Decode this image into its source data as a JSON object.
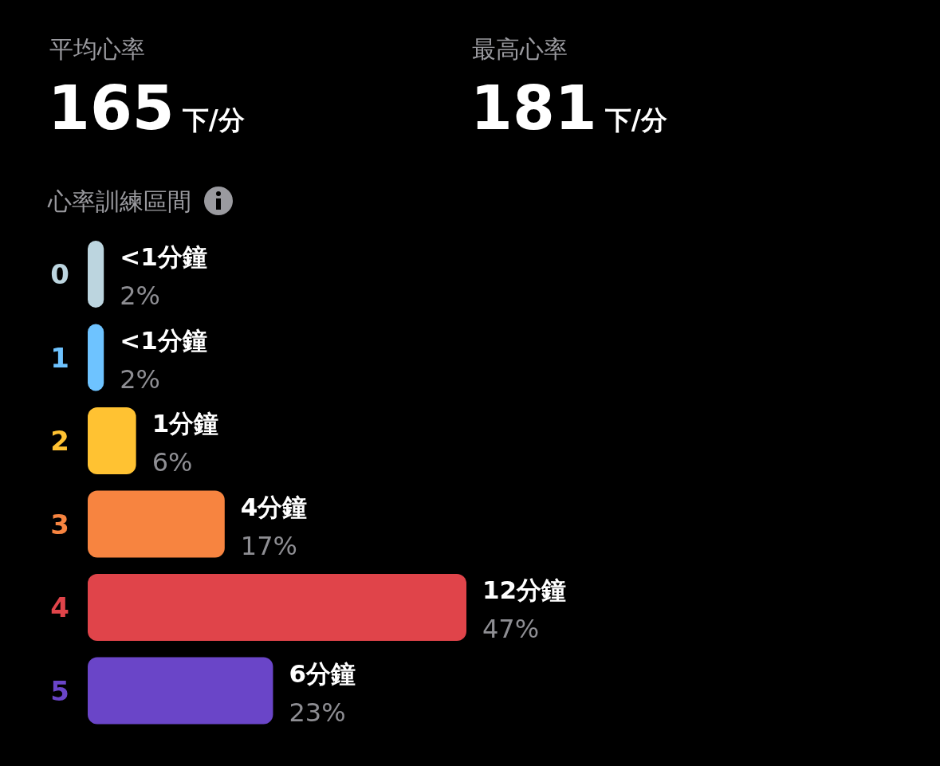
{
  "chart_data": [
    {
      "type": "other",
      "annotations": [
        "平均心率",
        "165",
        "下/分",
        "最高心率",
        "181",
        "下/分"
      ]
    },
    {
      "type": "bar",
      "orientation": "horizontal",
      "title": "心率訓練區間",
      "categories": [
        "0",
        "1",
        "2",
        "3",
        "4",
        "5"
      ],
      "values": [
        2,
        2,
        6,
        17,
        47,
        23
      ],
      "value_labels": [
        "2%",
        "2%",
        "6%",
        "17%",
        "47%",
        "23%"
      ],
      "colors": [
        "#bcd5df",
        "#6ec3ff",
        "#ffc232",
        "#f78440",
        "#e0444a",
        "#6a45c8"
      ],
      "annotations": [
        {
          "text": "<1分鐘",
          "x": 2,
          "y": "0"
        },
        {
          "text": "<1分鐘",
          "x": 2,
          "y": "1"
        },
        {
          "text": "1分鐘",
          "x": 6,
          "y": "2"
        },
        {
          "text": "4分鐘",
          "x": 17,
          "y": "3"
        },
        {
          "text": "12分鐘",
          "x": 47,
          "y": "4"
        },
        {
          "text": "6分鐘",
          "x": 23,
          "y": "5"
        }
      ]
    }
  ]
}
